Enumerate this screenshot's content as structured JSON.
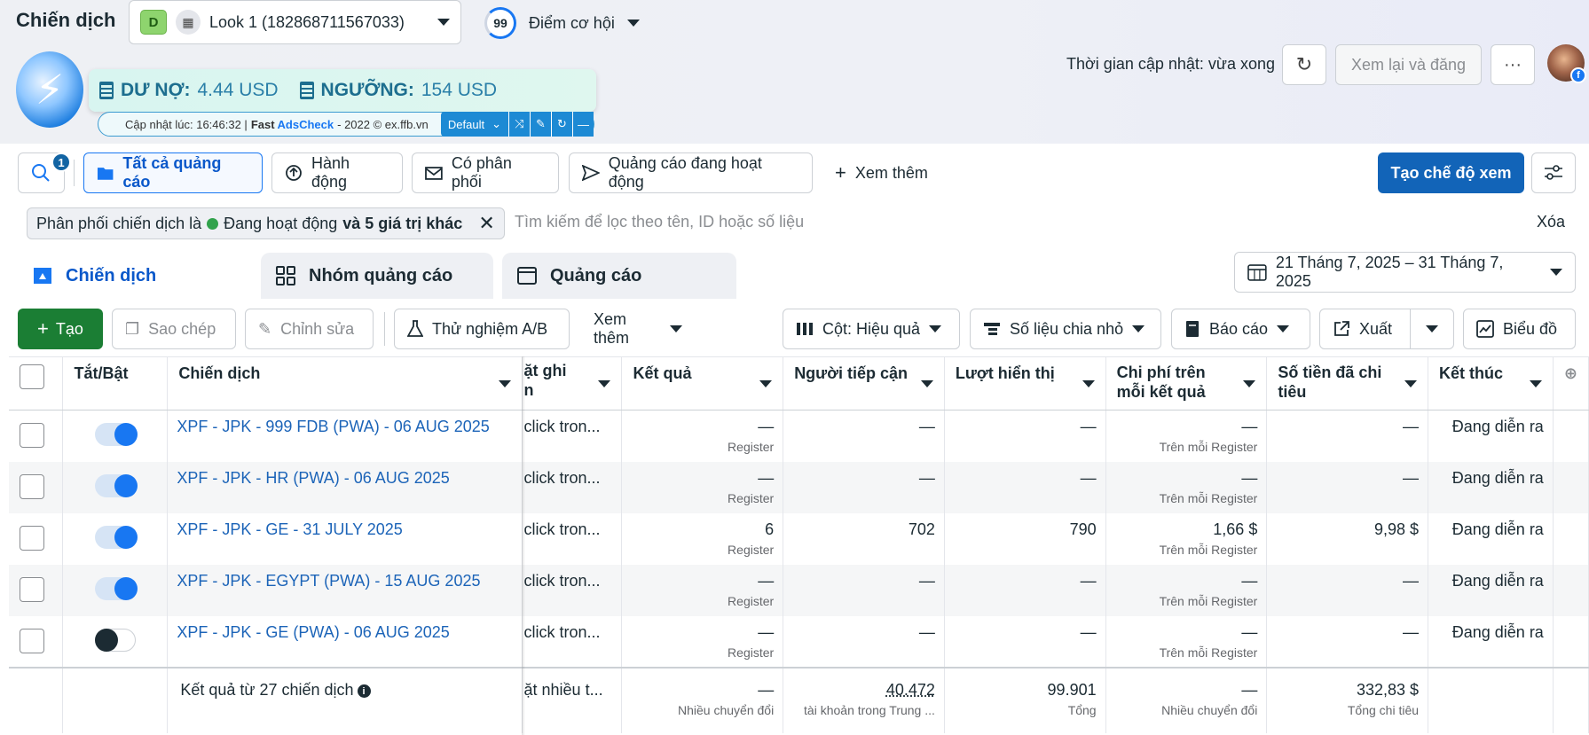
{
  "header": {
    "page_title": "Chiến dịch",
    "account_badge": "D",
    "account_name": "Look 1 (182868711567033)",
    "score_value": "99",
    "score_label": "Điểm cơ hội",
    "updated_time": "Thời gian cập nhật: vừa xong",
    "review_button": "Xem lại và đăng",
    "more_button": "···"
  },
  "extension": {
    "debt_label": "DƯ NỢ:",
    "debt_value": "4.44 USD",
    "threshold_label": "NGƯỠNG:",
    "threshold_value": "154 USD",
    "update_text": "Cập nhật lúc: 16:46:32 |",
    "fast": "Fast",
    "adscheck": "AdsCheck",
    "copyright": "- 2022 © ex.ffb.vn",
    "select_value": "Default"
  },
  "toolbar": {
    "search_badge": "1",
    "all_ads": "Tất cả quảng cáo",
    "actions": "Hành động",
    "delivery": "Có phân phối",
    "active_ads": "Quảng cáo đang hoạt động",
    "see_more": "Xem thêm",
    "create_view": "Tạo chế độ xem"
  },
  "filter": {
    "chip_prefix": "Phân phối chiến dịch là",
    "chip_status": "Đang hoạt động",
    "chip_more": "và 5 giá trị khác",
    "search_placeholder": "Tìm kiếm để lọc theo tên, ID hoặc số liệu",
    "clear": "Xóa"
  },
  "tabs": {
    "campaigns": "Chiến dịch",
    "adsets": "Nhóm quảng cáo",
    "ads": "Quảng cáo"
  },
  "date_range": "21 Tháng 7, 2025 – 31 Tháng 7, 2025",
  "actions_bar": {
    "create": "Tạo",
    "duplicate": "Sao chép",
    "edit": "Chỉnh sửa",
    "ab_test": "Thử nghiệm A/B",
    "see_more": "Xem thêm",
    "columns": "Cột: Hiệu quả",
    "breakdown": "Số liệu chia nhỏ",
    "reports": "Báo cáo",
    "export": "Xuất",
    "chart": "Biểu đồ"
  },
  "table": {
    "headers": {
      "toggle": "Tắt/Bật",
      "campaign": "Chiến dịch",
      "attribution": "ặt ghi",
      "attribution2": "n",
      "results": "Kết quả",
      "reach": "Người tiếp cận",
      "impressions": "Lượt hiển thị",
      "cost_per_result": "Chi phí trên mỗi kết quả",
      "amount_spent": "Số tiền đã chi tiêu",
      "ends": "Kết thúc"
    },
    "rows": [
      {
        "name": "XPF - JPK - 999 FDB (PWA) - 06 AUG 2025",
        "attr": "click tron...",
        "results": "—",
        "results_sub": "Register",
        "reach": "—",
        "impressions": "—",
        "cpr": "—",
        "cpr_sub": "Trên mỗi Register",
        "spent": "—",
        "ends": "Đang diễn ra",
        "on": true
      },
      {
        "name": "XPF - JPK - HR (PWA) - 06 AUG 2025",
        "attr": "click tron...",
        "results": "—",
        "results_sub": "Register",
        "reach": "—",
        "impressions": "—",
        "cpr": "—",
        "cpr_sub": "Trên mỗi Register",
        "spent": "—",
        "ends": "Đang diễn ra",
        "on": true
      },
      {
        "name": "XPF - JPK - GE - 31 JULY 2025",
        "attr": "click tron...",
        "results": "6",
        "results_sub": "Register",
        "reach": "702",
        "impressions": "790",
        "cpr": "1,66 $",
        "cpr_sub": "Trên mỗi Register",
        "spent": "9,98 $",
        "ends": "Đang diễn ra",
        "on": true
      },
      {
        "name": "XPF - JPK - EGYPT (PWA) - 15 AUG 2025",
        "attr": "click tron...",
        "results": "—",
        "results_sub": "Register",
        "reach": "—",
        "impressions": "—",
        "cpr": "—",
        "cpr_sub": "Trên mỗi Register",
        "spent": "—",
        "ends": "Đang diễn ra",
        "on": true
      },
      {
        "name": "XPF - JPK - GE (PWA) - 06 AUG 2025",
        "attr": "click tron...",
        "results": "—",
        "results_sub": "Register",
        "reach": "—",
        "impressions": "—",
        "cpr": "—",
        "cpr_sub": "Trên mỗi Register",
        "spent": "—",
        "ends": "Đang diễn ra",
        "on": false
      }
    ],
    "footer": {
      "label": "Kết quả từ 27 chiến dịch",
      "attr": "ặt nhiều t...",
      "results": "—",
      "results_sub": "Nhiều chuyển đổi",
      "reach": "40.472",
      "reach_sub": "tài khoản trong Trung ...",
      "impressions": "99.901",
      "impressions_sub": "Tổng",
      "cpr": "—",
      "cpr_sub": "Nhiều chuyển đổi",
      "spent": "332,83 $",
      "spent_sub": "Tổng chi tiêu"
    }
  }
}
